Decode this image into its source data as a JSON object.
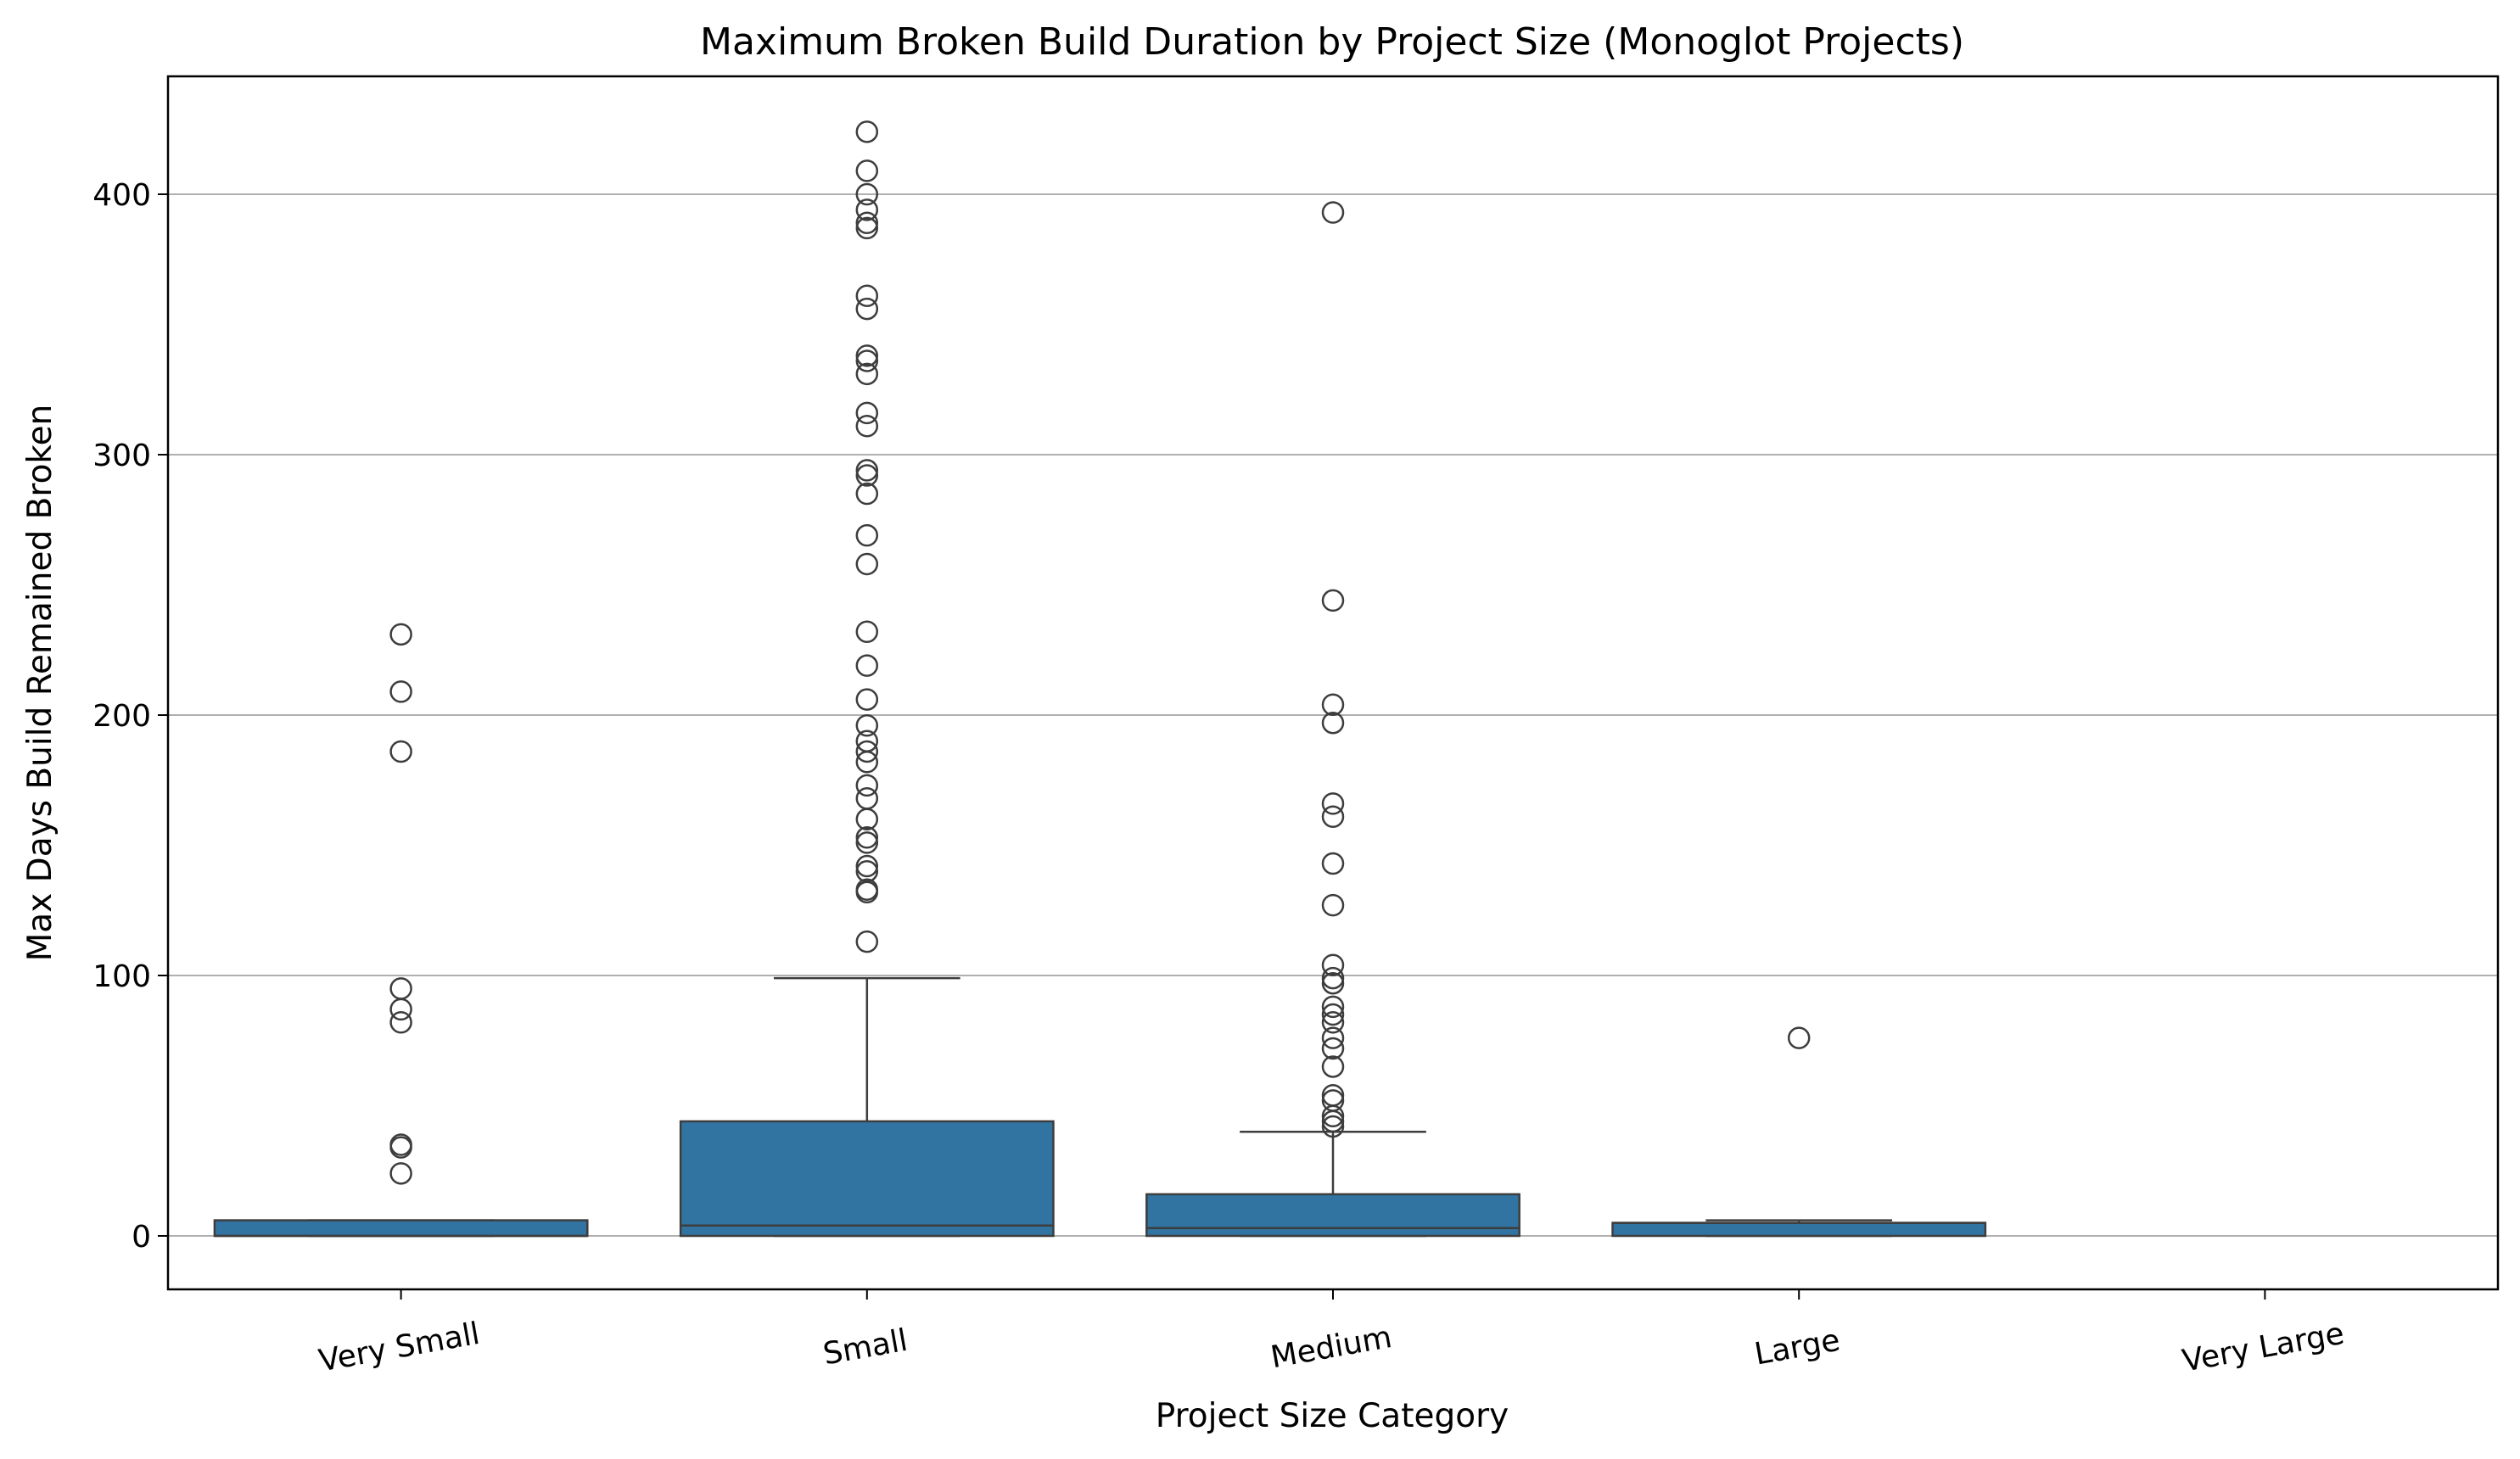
{
  "chart_data": {
    "type": "box",
    "title": "Maximum Broken Build Duration by Project Size (Monoglot Projects)",
    "xlabel": "Project Size Category",
    "ylabel": "Max Days Build Remained Broken",
    "ylim": [
      -21,
      446
    ],
    "yticks": [
      0,
      100,
      200,
      300,
      400
    ],
    "grid": "horizontal",
    "box_color": "#3274a1",
    "edge_color": "#3d3d3d",
    "categories": [
      "Very Small",
      "Small",
      "Medium",
      "Large",
      "Very Large"
    ],
    "boxes": [
      {
        "category": "Very Small",
        "whisker_low": 0,
        "q1": 0,
        "median": 0,
        "q3": 6,
        "whisker_high": 6,
        "outliers": [
          231,
          209,
          186,
          95,
          87,
          82,
          35,
          34,
          24
        ]
      },
      {
        "category": "Small",
        "whisker_low": 0,
        "q1": 0,
        "median": 4,
        "q3": 44,
        "whisker_high": 99,
        "outliers": [
          424,
          409,
          400,
          394,
          389,
          387,
          361,
          356,
          338,
          336,
          331,
          316,
          311,
          294,
          292,
          285,
          269,
          258,
          232,
          219,
          206,
          196,
          190,
          186,
          182,
          173,
          168,
          160,
          153,
          151,
          142,
          140,
          133,
          132,
          113
        ]
      },
      {
        "category": "Medium",
        "whisker_low": 0,
        "q1": 0,
        "median": 3,
        "q3": 16,
        "whisker_high": 40,
        "outliers": [
          393,
          244,
          204,
          197,
          166,
          161,
          143,
          127,
          104,
          99,
          97,
          88,
          85,
          82,
          76,
          72,
          65,
          54,
          52,
          46,
          44,
          42
        ]
      },
      {
        "category": "Large",
        "whisker_low": 0,
        "q1": 0,
        "median": 5,
        "q3": 5,
        "whisker_high": 6,
        "outliers": [
          76
        ]
      },
      {
        "category": "Very Large",
        "whisker_low": null,
        "q1": null,
        "median": null,
        "q3": null,
        "whisker_high": null,
        "outliers": []
      }
    ]
  }
}
